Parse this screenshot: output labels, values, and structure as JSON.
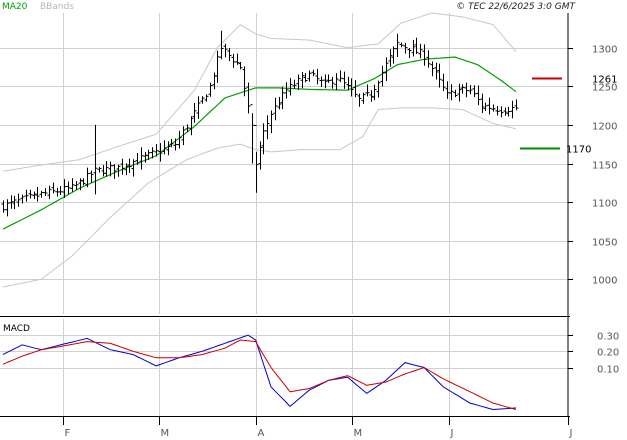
{
  "header": {
    "legend_ma": "MA20",
    "legend_bb": "BBands",
    "copyright": "© TEC 22/6/2025 3:0 GMT",
    "ma_color": "#00a000",
    "bb_color": "#c8c8c8",
    "price_color": "#000000"
  },
  "chart_data": [
    {
      "type": "ohlc",
      "title": "",
      "x_labels": [
        "F",
        "M",
        "A",
        "M",
        "J",
        "J"
      ],
      "y_ticks": [
        1000,
        1050,
        1100,
        1150,
        1200,
        1250,
        1300
      ],
      "ylim": [
        955,
        1345
      ],
      "grid": true,
      "x_count": 135,
      "price_close_keypoints": [
        [
          0,
          1095
        ],
        [
          10,
          1110
        ],
        [
          18,
          1118
        ],
        [
          22,
          1132
        ],
        [
          24,
          1140
        ],
        [
          30,
          1145
        ],
        [
          38,
          1160
        ],
        [
          45,
          1175
        ],
        [
          50,
          1215
        ],
        [
          54,
          1250
        ],
        [
          57,
          1300
        ],
        [
          62,
          1275
        ],
        [
          65,
          1195
        ],
        [
          66,
          1150
        ],
        [
          68,
          1190
        ],
        [
          70,
          1215
        ],
        [
          74,
          1245
        ],
        [
          78,
          1260
        ],
        [
          80,
          1265
        ],
        [
          84,
          1252
        ],
        [
          87,
          1262
        ],
        [
          90,
          1248
        ],
        [
          93,
          1232
        ],
        [
          96,
          1240
        ],
        [
          100,
          1278
        ],
        [
          103,
          1305
        ],
        [
          106,
          1300
        ],
        [
          110,
          1290
        ],
        [
          113,
          1265
        ],
        [
          116,
          1238
        ],
        [
          119,
          1245
        ],
        [
          122,
          1245
        ],
        [
          125,
          1225
        ],
        [
          130,
          1220
        ],
        [
          134,
          1222
        ]
      ],
      "ma20_keypoints": [
        [
          0,
          1065
        ],
        [
          10,
          1090
        ],
        [
          20,
          1118
        ],
        [
          30,
          1140
        ],
        [
          40,
          1160
        ],
        [
          50,
          1198
        ],
        [
          58,
          1235
        ],
        [
          66,
          1248
        ],
        [
          72,
          1248
        ],
        [
          80,
          1246
        ],
        [
          90,
          1245
        ],
        [
          97,
          1260
        ],
        [
          103,
          1278
        ],
        [
          110,
          1285
        ],
        [
          118,
          1288
        ],
        [
          124,
          1278
        ],
        [
          130,
          1258
        ],
        [
          134,
          1243
        ]
      ],
      "bb_upper_keypoints": [
        [
          0,
          1140
        ],
        [
          10,
          1148
        ],
        [
          20,
          1155
        ],
        [
          30,
          1172
        ],
        [
          40,
          1188
        ],
        [
          50,
          1245
        ],
        [
          56,
          1300
        ],
        [
          62,
          1330
        ],
        [
          66,
          1318
        ],
        [
          70,
          1312
        ],
        [
          80,
          1310
        ],
        [
          90,
          1300
        ],
        [
          98,
          1305
        ],
        [
          104,
          1332
        ],
        [
          112,
          1345
        ],
        [
          120,
          1340
        ],
        [
          128,
          1330
        ],
        [
          134,
          1295
        ]
      ],
      "bb_lower_keypoints": [
        [
          0,
          990
        ],
        [
          10,
          1000
        ],
        [
          18,
          1030
        ],
        [
          28,
          1080
        ],
        [
          38,
          1125
        ],
        [
          48,
          1155
        ],
        [
          56,
          1170
        ],
        [
          62,
          1175
        ],
        [
          66,
          1168
        ],
        [
          70,
          1165
        ],
        [
          78,
          1168
        ],
        [
          88,
          1168
        ],
        [
          94,
          1185
        ],
        [
          98,
          1220
        ],
        [
          104,
          1222
        ],
        [
          112,
          1222
        ],
        [
          120,
          1220
        ],
        [
          128,
          1202
        ],
        [
          134,
          1195
        ]
      ],
      "targets": [
        {
          "label": "1261",
          "value": 1261,
          "color": "#cc0000"
        },
        {
          "label": "1170",
          "value": 1170,
          "color": "#008800"
        }
      ]
    },
    {
      "type": "line",
      "title": "MACD",
      "y_ticks": [
        10,
        20,
        30
      ],
      "y_tick_labels": [
        "0.10",
        "0.20",
        "0.30"
      ],
      "ylim": [
        -20,
        40
      ],
      "grid": true,
      "series": [
        {
          "name": "",
          "color": "#0000cc",
          "keypoints": [
            [
              0,
              18
            ],
            [
              5,
              24
            ],
            [
              10,
              21
            ],
            [
              15,
              24
            ],
            [
              22,
              28
            ],
            [
              28,
              21
            ],
            [
              34,
              18
            ],
            [
              40,
              11
            ],
            [
              46,
              16
            ],
            [
              52,
              20
            ],
            [
              58,
              25
            ],
            [
              64,
              30
            ],
            [
              66,
              27
            ],
            [
              70,
              -2
            ],
            [
              75,
              -14
            ],
            [
              80,
              -4
            ],
            [
              85,
              2
            ],
            [
              90,
              4
            ],
            [
              95,
              -6
            ],
            [
              100,
              2
            ],
            [
              105,
              13
            ],
            [
              110,
              10
            ],
            [
              115,
              -2
            ],
            [
              122,
              -12
            ],
            [
              128,
              -16
            ],
            [
              134,
              -15
            ]
          ]
        },
        {
          "name": "",
          "color": "#cc0000",
          "keypoints": [
            [
              0,
              12
            ],
            [
              5,
              17
            ],
            [
              10,
              21
            ],
            [
              15,
              23
            ],
            [
              22,
              26
            ],
            [
              28,
              25
            ],
            [
              34,
              20
            ],
            [
              40,
              16
            ],
            [
              46,
              16
            ],
            [
              52,
              18
            ],
            [
              58,
              22
            ],
            [
              62,
              27
            ],
            [
              66,
              26
            ],
            [
              70,
              10
            ],
            [
              75,
              -5
            ],
            [
              80,
              -3
            ],
            [
              85,
              2
            ],
            [
              90,
              5
            ],
            [
              95,
              -1
            ],
            [
              100,
              1
            ],
            [
              105,
              6
            ],
            [
              110,
              10
            ],
            [
              115,
              3
            ],
            [
              122,
              -5
            ],
            [
              128,
              -12
            ],
            [
              134,
              -16
            ]
          ]
        }
      ]
    }
  ]
}
